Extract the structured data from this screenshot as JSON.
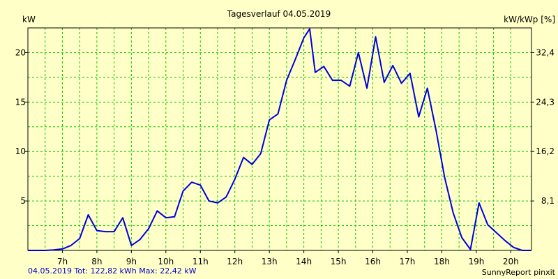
{
  "chart_data": {
    "type": "line",
    "title": "Tagesverlauf 04.05.2019",
    "ylabel_left": "kW",
    "ylabel_right": "kW/kWp [%]",
    "xlim": [
      6.0,
      20.6
    ],
    "ylim": [
      0,
      22.5
    ],
    "x_ticks": [
      {
        "value": 7,
        "label": "7h"
      },
      {
        "value": 8,
        "label": "8h"
      },
      {
        "value": 9,
        "label": "9h"
      },
      {
        "value": 10,
        "label": "10h"
      },
      {
        "value": 11,
        "label": "11h"
      },
      {
        "value": 12,
        "label": "12h"
      },
      {
        "value": 13,
        "label": "13h"
      },
      {
        "value": 14,
        "label": "14h"
      },
      {
        "value": 15,
        "label": "15h"
      },
      {
        "value": 16,
        "label": "16h"
      },
      {
        "value": 17,
        "label": "17h"
      },
      {
        "value": 18,
        "label": "18h"
      },
      {
        "value": 19,
        "label": "19h"
      },
      {
        "value": 20,
        "label": "20h"
      }
    ],
    "y_ticks_left": [
      {
        "value": 5,
        "label": "5"
      },
      {
        "value": 10,
        "label": "10"
      },
      {
        "value": 15,
        "label": "15"
      },
      {
        "value": 20,
        "label": "20"
      }
    ],
    "y_ticks_right": [
      {
        "value": 5,
        "label": "8,1"
      },
      {
        "value": 10,
        "label": "16,2"
      },
      {
        "value": 15,
        "label": "24,3"
      },
      {
        "value": 20,
        "label": "32,4"
      }
    ],
    "grid_x": [
      6.5,
      7,
      7.5,
      8,
      8.5,
      9,
      9.5,
      10,
      10.5,
      11,
      11.5,
      12,
      12.5,
      13,
      13.5,
      14,
      14.5,
      15,
      15.5,
      16,
      16.5,
      17,
      17.5,
      18,
      18.5,
      19,
      19.5,
      20
    ],
    "grid_y": [
      2.5,
      5,
      7.5,
      10,
      12.5,
      15,
      17.5,
      20
    ],
    "colors": {
      "line": "#0000dc",
      "grid": "#00c800",
      "background": "#ffffc8",
      "footer_left": "#0000c8"
    },
    "series": [
      {
        "x": [
          6.0,
          6.25,
          6.5,
          6.75,
          7.0,
          7.25,
          7.5,
          7.75,
          8.0,
          8.25,
          8.5,
          8.75,
          9.0,
          9.25,
          9.5,
          9.75,
          10.0,
          10.25,
          10.5,
          10.75,
          11.0,
          11.25,
          11.5,
          11.75,
          12.0,
          12.25,
          12.5,
          12.75,
          13.0,
          13.25,
          13.5,
          13.75,
          14.0,
          14.17,
          14.33,
          14.58,
          14.83,
          15.08,
          15.33,
          15.58,
          15.83,
          16.08,
          16.33,
          16.58,
          16.83,
          17.08,
          17.33,
          17.58,
          17.83,
          18.08,
          18.33,
          18.58,
          18.83,
          19.08,
          19.33,
          19.58,
          19.83,
          20.08,
          20.33,
          20.58
        ],
        "values": [
          0.0,
          0.0,
          0.0,
          0.05,
          0.15,
          0.5,
          1.2,
          3.6,
          2.0,
          1.9,
          1.9,
          3.3,
          0.5,
          1.1,
          2.2,
          4.0,
          3.3,
          3.4,
          6.0,
          6.9,
          6.6,
          5.0,
          4.8,
          5.4,
          7.2,
          9.4,
          8.7,
          9.8,
          13.2,
          13.8,
          17.2,
          19.3,
          21.5,
          22.4,
          18.0,
          18.6,
          17.2,
          17.2,
          16.6,
          20.0,
          16.4,
          21.6,
          17.0,
          18.7,
          16.9,
          17.9,
          13.5,
          16.4,
          12.2,
          7.4,
          3.8,
          1.3,
          0.1,
          4.8,
          2.6,
          1.8,
          1.0,
          0.3,
          0.0,
          0.0
        ]
      }
    ]
  },
  "footer": {
    "left": "04.05.2019 Tot: 122,82 kWh Max: 22,42 kW",
    "right": "SunnyReport pinxit"
  }
}
